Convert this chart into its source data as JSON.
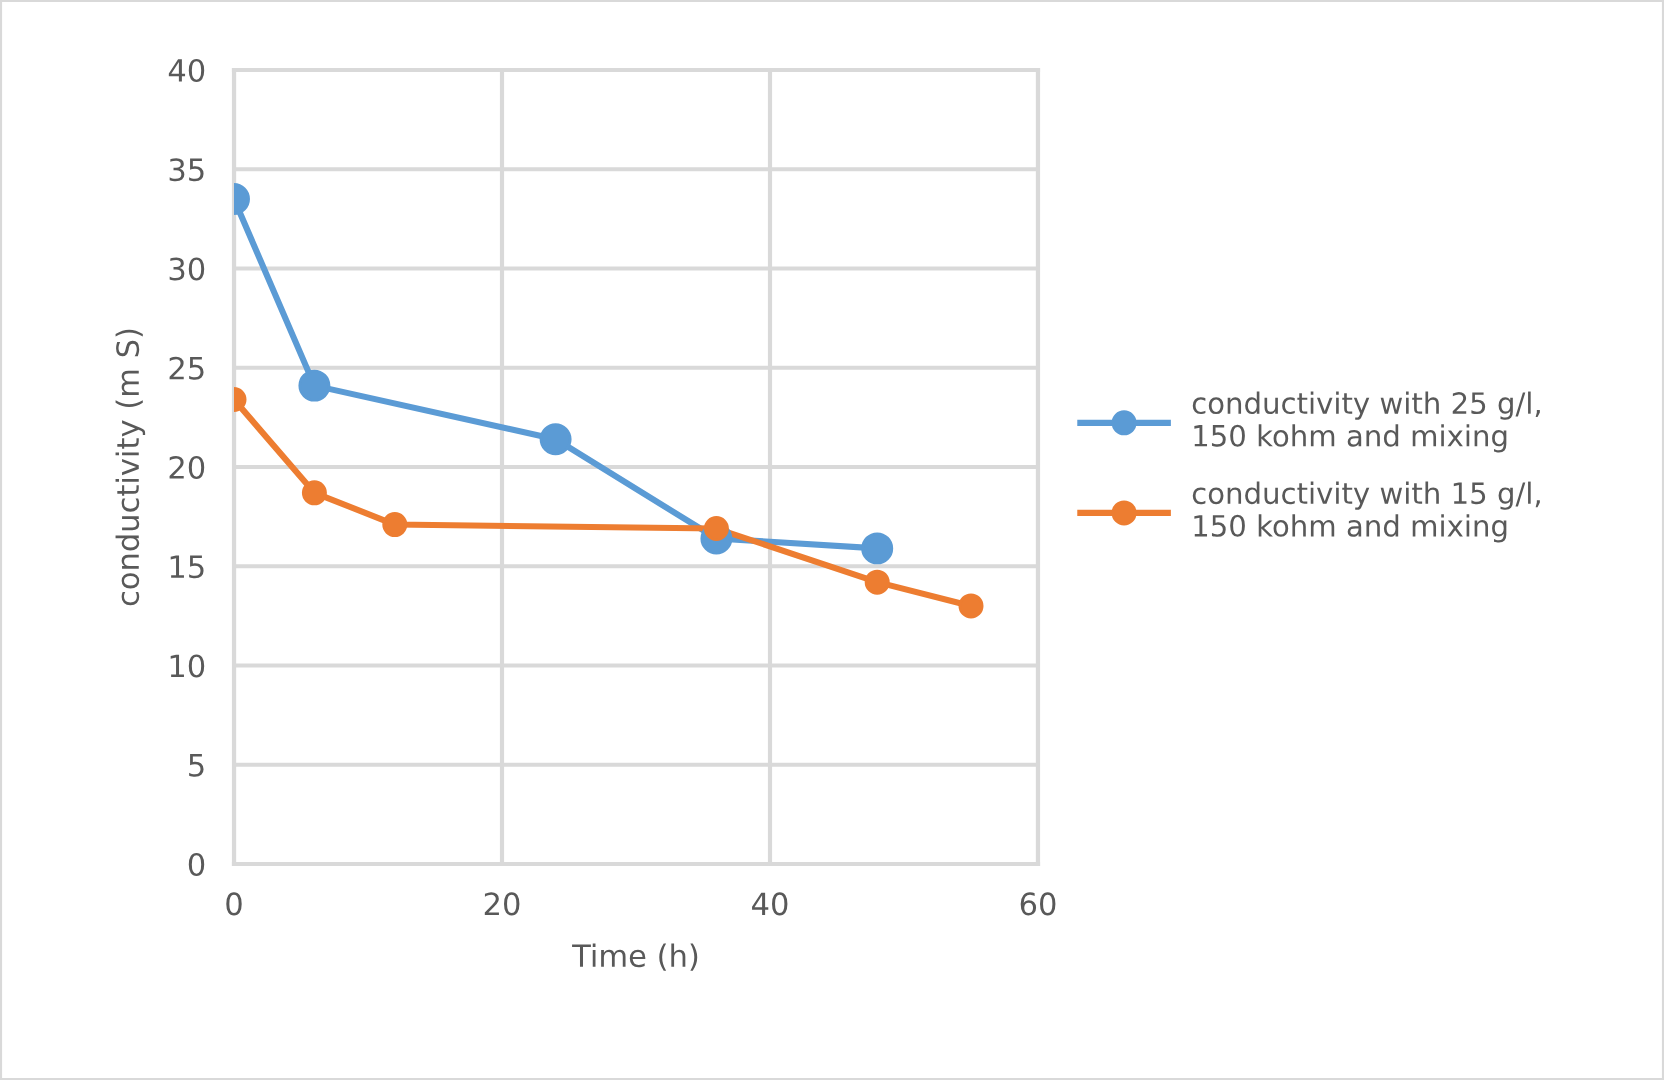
{
  "chart_data": {
    "type": "line",
    "xlabel": "Time (h)",
    "ylabel": "conductivity (m S)",
    "xlim": [
      0,
      60
    ],
    "xticks": [
      0,
      20,
      40,
      60
    ],
    "ylim": [
      0,
      40
    ],
    "yticks": [
      0,
      5,
      10,
      15,
      20,
      25,
      30,
      35,
      40
    ],
    "grid": true,
    "legend": "right",
    "marker": "circle",
    "line_style": "solid",
    "series": [
      {
        "name": "conductivity with 25 g/l, 150 kohm and mixing",
        "color": "#5b9bd5",
        "x": [
          0,
          6,
          24,
          36,
          48
        ],
        "values": [
          33.5,
          24.1,
          21.4,
          16.4,
          15.9
        ]
      },
      {
        "name": "conductivity with 15 g/l, 150 kohm and mixing",
        "color": "#ed7d31",
        "x": [
          0,
          6,
          12,
          36,
          48,
          55
        ],
        "values": [
          23.4,
          18.7,
          17.1,
          16.9,
          14.2,
          13.0
        ]
      }
    ]
  }
}
